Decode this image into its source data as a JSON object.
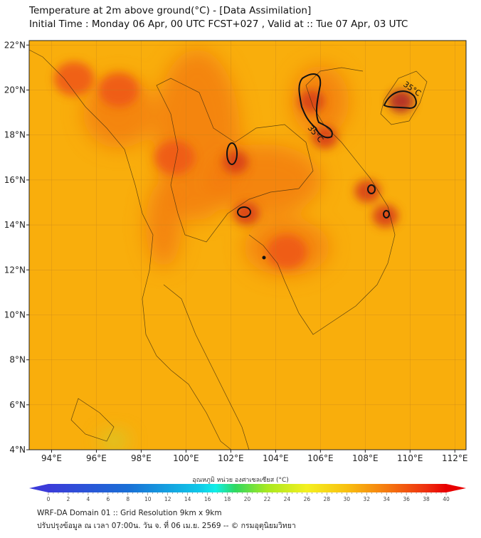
{
  "header": {
    "title": "Temperature at 2m above ground(°C) - [Data Assimilation]",
    "subtitle": "Initial Time : Monday 06 Apr, 00 UTC FCST+027 , Valid at :: Tue 07 Apr, 03 UTC"
  },
  "chart_data": {
    "type": "heatmap",
    "title": "Temperature at 2m above ground(°C)",
    "x_ticks": [
      "94°E",
      "96°E",
      "98°E",
      "100°E",
      "102°E",
      "104°E",
      "106°E",
      "108°E",
      "110°E",
      "112°E"
    ],
    "x_values": [
      94,
      96,
      98,
      100,
      102,
      104,
      106,
      108,
      110,
      112
    ],
    "y_ticks": [
      "4°N",
      "6°N",
      "8°N",
      "10°N",
      "12°N",
      "14°N",
      "16°N",
      "18°N",
      "20°N",
      "22°N"
    ],
    "y_values": [
      4,
      6,
      8,
      10,
      12,
      14,
      16,
      18,
      20,
      22
    ],
    "xlim": [
      93,
      112.5
    ],
    "ylim": [
      4,
      22.2
    ],
    "contour_level": 35,
    "contour_labels": [
      "35°C",
      "35°C"
    ],
    "hotspots": [
      {
        "lon": 109.6,
        "lat": 19.5,
        "value": 37
      },
      {
        "lon": 105.6,
        "lat": 19.5,
        "value": 35.5
      },
      {
        "lon": 106.2,
        "lat": 17.9,
        "value": 36
      },
      {
        "lon": 102.2,
        "lat": 16.8,
        "value": 35.5
      },
      {
        "lon": 102.7,
        "lat": 14.5,
        "value": 35.5
      },
      {
        "lon": 108.1,
        "lat": 15.5,
        "value": 35
      },
      {
        "lon": 108.9,
        "lat": 14.4,
        "value": 35
      },
      {
        "lon": 104.5,
        "lat": 12.8,
        "value": 34
      },
      {
        "lon": 97.0,
        "lat": 20.0,
        "value": 33
      },
      {
        "lon": 99.5,
        "lat": 17.0,
        "value": 33
      },
      {
        "lon": 95.0,
        "lat": 20.5,
        "value": 33
      }
    ],
    "background_value": 29,
    "cool_spot": {
      "lon": 96.8,
      "lat": 4.4,
      "value": 21
    },
    "colorbar": {
      "label": "อุณหภูมิ หน่วย องศาเซลเซียส (°C)",
      "min": 0,
      "max": 40,
      "ticks": [
        "0",
        "2",
        "4",
        "6",
        "8",
        "10",
        "12",
        "14",
        "16",
        "18",
        "20",
        "22",
        "24",
        "26",
        "28",
        "30",
        "32",
        "34",
        "36",
        "38",
        "40"
      ]
    }
  },
  "footer": {
    "line1": "WRF-DA Domain 01 :: Grid Resolution 9km x 9km",
    "line2": "ปรับปรุงข้อมูล ณ เวลา 07:00น. วัน จ. ที่ 06 เม.ย. 2569 -- © กรมอุตุนิยมวิทยา"
  }
}
